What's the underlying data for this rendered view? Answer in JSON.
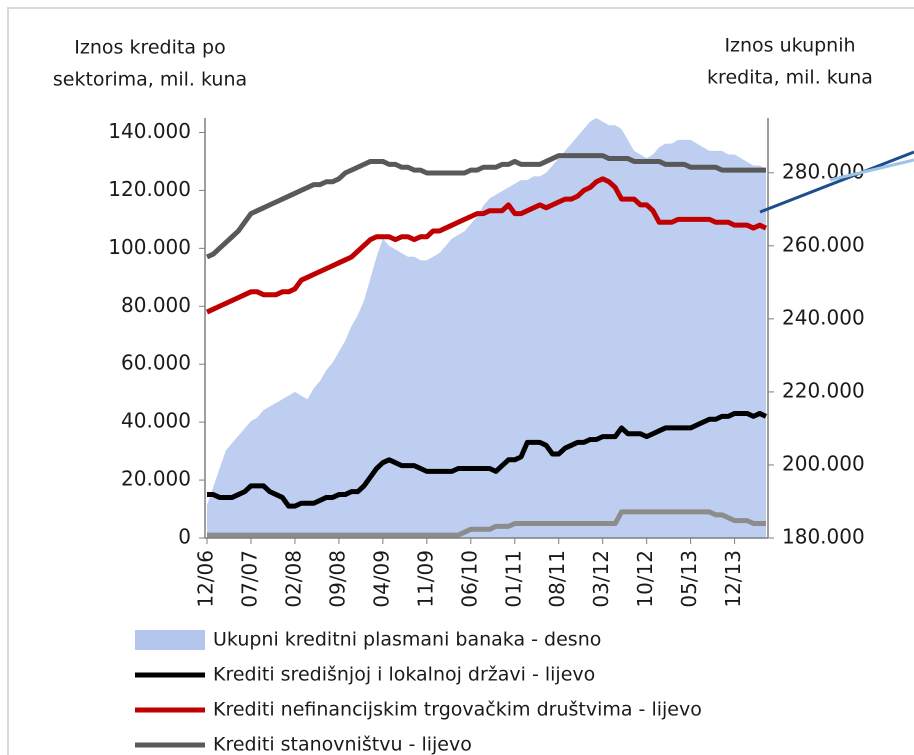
{
  "chart_data": {
    "type": "line",
    "y_label": [
      "Iznos kredita po",
      "sektorima, mil. kuna"
    ],
    "y2_label": [
      "Iznos ukupnih",
      "kredita, mil. kuna"
    ],
    "categories": [
      "12/06",
      null,
      null,
      null,
      null,
      null,
      null,
      "07/07",
      null,
      null,
      null,
      null,
      null,
      null,
      "02/08",
      null,
      null,
      null,
      null,
      null,
      null,
      "09/08",
      null,
      null,
      null,
      null,
      null,
      null,
      "04/09",
      null,
      null,
      null,
      null,
      null,
      null,
      "11/09",
      null,
      null,
      null,
      null,
      null,
      null,
      "06/10",
      null,
      null,
      null,
      null,
      null,
      null,
      "01/11",
      null,
      null,
      null,
      null,
      null,
      null,
      "08/11",
      null,
      null,
      null,
      null,
      null,
      null,
      "03/12",
      null,
      null,
      null,
      null,
      null,
      null,
      "10/12",
      null,
      null,
      null,
      null,
      null,
      null,
      "05/13",
      null,
      null,
      null,
      null,
      null,
      null,
      "12/13",
      null,
      null,
      null,
      null,
      null
    ],
    "ylim": [
      0,
      145000
    ],
    "yticks": [
      {
        "value": 0,
        "label": "0"
      },
      {
        "value": 20000,
        "label": "20.000"
      },
      {
        "value": 40000,
        "label": "40.000"
      },
      {
        "value": 60000,
        "label": "60.000"
      },
      {
        "value": 80000,
        "label": "80.000"
      },
      {
        "value": 100000,
        "label": "100.000"
      },
      {
        "value": 120000,
        "label": "120.000"
      },
      {
        "value": 140000,
        "label": "140.000"
      }
    ],
    "y2lim": [
      180000,
      295000
    ],
    "y2ticks": [
      {
        "value": 180000,
        "label": "180.000"
      },
      {
        "value": 200000,
        "label": "200.000"
      },
      {
        "value": 220000,
        "label": "220.000"
      },
      {
        "value": 240000,
        "label": "240.000"
      },
      {
        "value": 260000,
        "label": "260.000"
      },
      {
        "value": 280000,
        "label": "280.000"
      }
    ],
    "series": [
      {
        "name": "Ukupni kreditni plasmani banaka - desno",
        "type": "area",
        "axis": "y2",
        "color": "#b3c6ee",
        "values": [
          189000,
          194000,
          199000,
          204000,
          206000,
          208000,
          210000,
          212000,
          213000,
          215000,
          216000,
          217000,
          218000,
          219000,
          220000,
          219000,
          218000,
          221000,
          223000,
          226000,
          228000,
          231000,
          234000,
          238000,
          241000,
          245000,
          251000,
          257000,
          262000,
          260000,
          259000,
          258000,
          257000,
          257000,
          256000,
          256000,
          257000,
          258000,
          260000,
          262000,
          263000,
          264000,
          266000,
          268000,
          271000,
          273000,
          274000,
          275000,
          276000,
          277000,
          278000,
          278000,
          279000,
          279000,
          280000,
          282000,
          284000,
          286000,
          288000,
          290000,
          292000,
          294000,
          295000,
          294000,
          293000,
          293000,
          292000,
          289000,
          286000,
          285000,
          284000,
          285000,
          287000,
          288000,
          288000,
          289000,
          289000,
          289000,
          288000,
          287000,
          286000,
          286000,
          286000,
          285000,
          285000,
          284000,
          283000,
          282000,
          282000,
          281000
        ]
      },
      {
        "name": "Krediti središnjoj i lokalnoj državi - lijevo",
        "type": "line",
        "color": "#000000",
        "values": [
          15000,
          15000,
          14000,
          14000,
          14000,
          15000,
          16000,
          18000,
          18000,
          18000,
          16000,
          15000,
          14000,
          11000,
          11000,
          12000,
          12000,
          12000,
          13000,
          14000,
          14000,
          15000,
          15000,
          16000,
          16000,
          18000,
          21000,
          24000,
          26000,
          27000,
          26000,
          25000,
          25000,
          25000,
          24000,
          23000,
          23000,
          23000,
          23000,
          23000,
          24000,
          24000,
          24000,
          24000,
          24000,
          24000,
          23000,
          25000,
          27000,
          27000,
          28000,
          33000,
          33000,
          33000,
          32000,
          29000,
          29000,
          31000,
          32000,
          33000,
          33000,
          34000,
          34000,
          35000,
          35000,
          35000,
          38000,
          36000,
          36000,
          36000,
          35000,
          36000,
          37000,
          38000,
          38000,
          38000,
          38000,
          38000,
          39000,
          40000,
          41000,
          41000,
          42000,
          42000,
          43000,
          43000,
          43000,
          42000,
          43000,
          42000
        ]
      },
      {
        "name": "Krediti nefinancijskim trgovačkim društvima - lijevo",
        "type": "line",
        "color": "#c00000",
        "values": [
          78000,
          79000,
          80000,
          81000,
          82000,
          83000,
          84000,
          85000,
          85000,
          84000,
          84000,
          84000,
          85000,
          85000,
          86000,
          89000,
          90000,
          91000,
          92000,
          93000,
          94000,
          95000,
          96000,
          97000,
          99000,
          101000,
          103000,
          104000,
          104000,
          104000,
          103000,
          104000,
          104000,
          103000,
          104000,
          104000,
          106000,
          106000,
          107000,
          108000,
          109000,
          110000,
          111000,
          112000,
          112000,
          113000,
          113000,
          113000,
          115000,
          112000,
          112000,
          113000,
          114000,
          115000,
          114000,
          115000,
          116000,
          117000,
          117000,
          118000,
          120000,
          121000,
          123000,
          124000,
          123000,
          121000,
          117000,
          117000,
          117000,
          115000,
          115000,
          113000,
          109000,
          109000,
          109000,
          110000,
          110000,
          110000,
          110000,
          110000,
          110000,
          109000,
          109000,
          109000,
          108000,
          108000,
          108000,
          107000,
          108000,
          107000
        ]
      },
      {
        "name": "Krediti stanovništvu - lijevo",
        "type": "line",
        "color": "#595959",
        "values": [
          97000,
          98000,
          100000,
          102000,
          104000,
          106000,
          109000,
          112000,
          113000,
          114000,
          115000,
          116000,
          117000,
          118000,
          119000,
          120000,
          121000,
          122000,
          122000,
          123000,
          123000,
          124000,
          126000,
          127000,
          128000,
          129000,
          130000,
          130000,
          130000,
          129000,
          129000,
          128000,
          128000,
          127000,
          127000,
          126000,
          126000,
          126000,
          126000,
          126000,
          126000,
          126000,
          127000,
          127000,
          128000,
          128000,
          128000,
          129000,
          129000,
          130000,
          129000,
          129000,
          129000,
          129000,
          130000,
          131000,
          132000,
          132000,
          132000,
          132000,
          132000,
          132000,
          132000,
          132000,
          131000,
          131000,
          131000,
          131000,
          130000,
          130000,
          130000,
          130000,
          130000,
          129000,
          129000,
          129000,
          129000,
          128000,
          128000,
          128000,
          128000,
          128000,
          127000,
          127000,
          127000,
          127000,
          127000,
          127000,
          127000,
          127000
        ]
      },
      {
        "name": null,
        "type": "line",
        "color": "#8c8c8c",
        "values": [
          1000,
          1000,
          1000,
          1000,
          1000,
          1000,
          1000,
          1000,
          1000,
          1000,
          1000,
          1000,
          1000,
          1000,
          1000,
          1000,
          1000,
          1000,
          1000,
          1000,
          1000,
          1000,
          1000,
          1000,
          1000,
          1000,
          1000,
          1000,
          1000,
          1000,
          1000,
          1000,
          1000,
          1000,
          1000,
          1000,
          1000,
          1000,
          1000,
          1000,
          1000,
          2000,
          3000,
          3000,
          3000,
          3000,
          4000,
          4000,
          4000,
          5000,
          5000,
          5000,
          5000,
          5000,
          5000,
          5000,
          5000,
          5000,
          5000,
          5000,
          5000,
          5000,
          5000,
          5000,
          5000,
          5000,
          9000,
          9000,
          9000,
          9000,
          9000,
          9000,
          9000,
          9000,
          9000,
          9000,
          9000,
          9000,
          9000,
          9000,
          9000,
          8000,
          8000,
          7000,
          6000,
          6000,
          6000,
          5000,
          5000,
          5000
        ]
      }
    ]
  }
}
